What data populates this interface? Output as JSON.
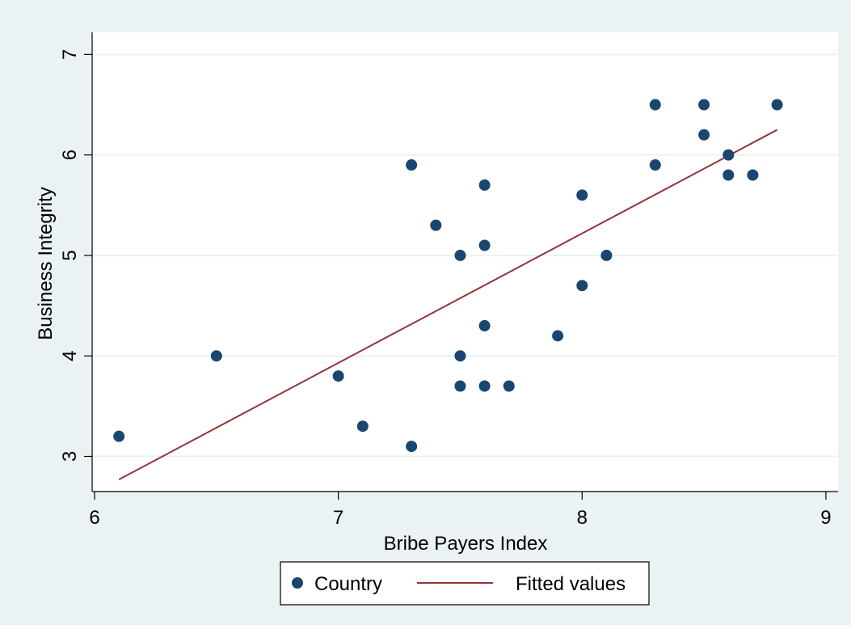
{
  "chart_data": {
    "type": "scatter",
    "xlabel": "Bribe Payers Index",
    "ylabel": "Business Integrity",
    "xlim": [
      5.99,
      9.05
    ],
    "ylim": [
      2.65,
      7.22
    ],
    "xticks": [
      "6",
      "7",
      "8",
      "9"
    ],
    "yticks": [
      "3",
      "4",
      "5",
      "6",
      "7"
    ],
    "grid": true,
    "legend_position": "bottom",
    "colors": {
      "outer_background": "#eaf2f3",
      "plot_background": "#ffffff",
      "gridline": "#eaf2f3",
      "points": "#1a476f",
      "fit_line": "#90353b"
    },
    "series": [
      {
        "name": "Country",
        "kind": "scatter",
        "points": [
          [
            6.1,
            3.2
          ],
          [
            6.5,
            4.0
          ],
          [
            7.0,
            3.8
          ],
          [
            7.1,
            3.3
          ],
          [
            7.3,
            5.9
          ],
          [
            7.3,
            3.1
          ],
          [
            7.4,
            5.3
          ],
          [
            7.5,
            5.0
          ],
          [
            7.5,
            4.0
          ],
          [
            7.5,
            3.7
          ],
          [
            7.6,
            5.7
          ],
          [
            7.6,
            5.1
          ],
          [
            7.6,
            4.3
          ],
          [
            7.6,
            3.7
          ],
          [
            7.7,
            3.7
          ],
          [
            7.9,
            4.2
          ],
          [
            8.0,
            5.6
          ],
          [
            8.0,
            4.7
          ],
          [
            8.1,
            5.0
          ],
          [
            8.3,
            6.5
          ],
          [
            8.3,
            5.9
          ],
          [
            8.5,
            6.5
          ],
          [
            8.5,
            6.2
          ],
          [
            8.6,
            6.0
          ],
          [
            8.6,
            5.8
          ],
          [
            8.7,
            5.8
          ],
          [
            8.8,
            6.5
          ]
        ]
      },
      {
        "name": "Fitted values",
        "kind": "line",
        "points": [
          [
            6.1,
            2.77
          ],
          [
            8.8,
            6.25
          ]
        ]
      }
    ]
  }
}
